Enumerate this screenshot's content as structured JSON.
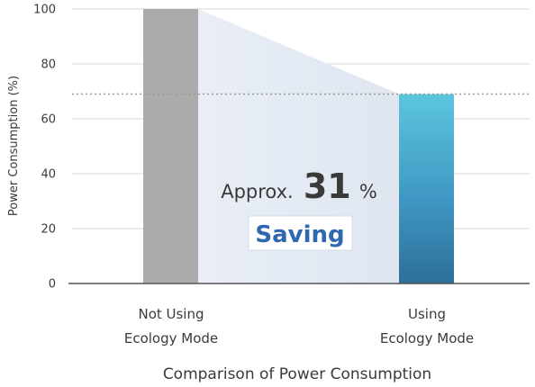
{
  "chart_data": {
    "type": "bar",
    "categories": [
      [
        "Not Using",
        "Ecology Mode"
      ],
      [
        "Using",
        "Ecology Mode"
      ]
    ],
    "values": [
      100,
      69
    ],
    "title": "Comparison of Power Consumption",
    "ylabel": "Power Consumption (%)",
    "ylim": [
      0,
      100
    ],
    "yticks": [
      "0",
      "20",
      "40",
      "60",
      "80",
      "100"
    ],
    "grid": true,
    "bar_colors": [
      "#ababab",
      "#3f98c3"
    ],
    "annotation": {
      "prefix": "Approx.",
      "value": "31",
      "unit": "%",
      "label": "Saving"
    }
  }
}
